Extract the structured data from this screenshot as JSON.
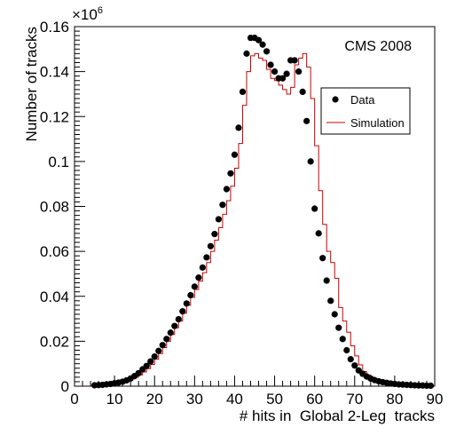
{
  "chart_data": {
    "type": "scatter",
    "annotation": "CMS 2008",
    "xlabel": "# hits in  Global 2-Leg  tracks",
    "ylabel": "Number of tracks",
    "y_multiplier": {
      "base": "×10",
      "exponent": "6"
    },
    "xlim": [
      0,
      90
    ],
    "ylim": [
      0,
      0.16
    ],
    "x_ticks": [
      0,
      10,
      20,
      30,
      40,
      50,
      60,
      70,
      80,
      90
    ],
    "x_tick_labels": [
      "0",
      "10",
      "20",
      "30",
      "40",
      "50",
      "60",
      "70",
      "80",
      "90"
    ],
    "y_ticks": [
      0,
      0.02,
      0.04,
      0.06,
      0.08,
      0.1,
      0.12,
      0.14,
      0.16
    ],
    "y_tick_labels": [
      "0",
      "0.02",
      "0.04",
      "0.06",
      "0.08",
      "0.1",
      "0.12",
      "0.14",
      "0.16"
    ],
    "legend": {
      "position": "top-right",
      "entries": [
        "Data",
        "Simulation"
      ]
    },
    "colors": {
      "data": "#000000",
      "simulation": "#cc0000",
      "axes": "#000000"
    },
    "series": [
      {
        "name": "Data",
        "style": "markers",
        "x": [
          5,
          6,
          7,
          8,
          9,
          10,
          11,
          12,
          13,
          14,
          15,
          16,
          17,
          18,
          19,
          20,
          21,
          22,
          23,
          24,
          25,
          26,
          27,
          28,
          29,
          30,
          31,
          32,
          33,
          34,
          35,
          36,
          37,
          38,
          39,
          40,
          41,
          42,
          43,
          44,
          45,
          46,
          47,
          48,
          49,
          50,
          51,
          52,
          53,
          54,
          55,
          56,
          57,
          58,
          59,
          60,
          61,
          62,
          63,
          64,
          65,
          66,
          67,
          68,
          69,
          70,
          71,
          72,
          73,
          74,
          75,
          76,
          77,
          78,
          79,
          80,
          81,
          82,
          83,
          84,
          85,
          86,
          87,
          88,
          89
        ],
        "y": [
          0.0004,
          0.0005,
          0.0006,
          0.0008,
          0.001,
          0.0013,
          0.0016,
          0.002,
          0.0026,
          0.0034,
          0.0045,
          0.0058,
          0.0075,
          0.009,
          0.011,
          0.0132,
          0.0157,
          0.0183,
          0.021,
          0.0238,
          0.0268,
          0.0298,
          0.0333,
          0.0368,
          0.0405,
          0.0443,
          0.0483,
          0.0528,
          0.0573,
          0.0623,
          0.0677,
          0.0743,
          0.0807,
          0.0877,
          0.0947,
          0.103,
          0.115,
          0.131,
          0.148,
          0.155,
          0.155,
          0.154,
          0.152,
          0.149,
          0.143,
          0.14,
          0.137,
          0.137,
          0.139,
          0.145,
          0.145,
          0.14,
          0.131,
          0.118,
          0.1,
          0.079,
          0.068,
          0.057,
          0.047,
          0.038,
          0.032,
          0.026,
          0.021,
          0.016,
          0.012,
          0.0092,
          0.007,
          0.0055,
          0.0043,
          0.0034,
          0.0027,
          0.0022,
          0.0018,
          0.0015,
          0.0012,
          0.001,
          0.0008,
          0.0007,
          0.0006,
          0.0005,
          0.0004,
          0.0003,
          0.0003,
          0.0002,
          0.0002
        ]
      },
      {
        "name": "Simulation",
        "style": "step",
        "bin_edges": [
          4,
          5,
          6,
          7,
          8,
          9,
          10,
          11,
          12,
          13,
          14,
          15,
          16,
          17,
          18,
          19,
          20,
          21,
          22,
          23,
          24,
          25,
          26,
          27,
          28,
          29,
          30,
          31,
          32,
          33,
          34,
          35,
          36,
          37,
          38,
          39,
          40,
          41,
          42,
          43,
          44,
          45,
          46,
          47,
          48,
          49,
          50,
          51,
          52,
          53,
          54,
          55,
          56,
          57,
          58,
          59,
          60,
          61,
          62,
          63,
          64,
          65,
          66,
          67,
          68,
          69,
          70,
          71,
          72,
          73,
          74,
          75,
          76,
          77,
          78,
          79,
          80,
          81,
          82,
          83,
          84,
          85,
          86,
          87,
          88,
          89,
          90
        ],
        "values": [
          0.0003,
          0.0004,
          0.0005,
          0.0006,
          0.0008,
          0.001,
          0.0012,
          0.0016,
          0.002,
          0.0025,
          0.0032,
          0.004,
          0.005,
          0.0063,
          0.0078,
          0.0097,
          0.012,
          0.0145,
          0.0172,
          0.02,
          0.023,
          0.026,
          0.029,
          0.0325,
          0.036,
          0.0395,
          0.043,
          0.0467,
          0.0505,
          0.055,
          0.06,
          0.065,
          0.0705,
          0.0765,
          0.0825,
          0.089,
          0.097,
          0.108,
          0.125,
          0.14,
          0.147,
          0.148,
          0.146,
          0.145,
          0.141,
          0.137,
          0.136,
          0.134,
          0.132,
          0.13,
          0.133,
          0.143,
          0.146,
          0.148,
          0.142,
          0.128,
          0.107,
          0.087,
          0.072,
          0.06,
          0.055,
          0.048,
          0.035,
          0.029,
          0.024,
          0.018,
          0.0135,
          0.0095,
          0.0065,
          0.005,
          0.004,
          0.0032,
          0.0025,
          0.002,
          0.0016,
          0.0013,
          0.001,
          0.0008,
          0.0006,
          0.0005,
          0.0004,
          0.0003,
          0.0003,
          0.0002,
          0.0002,
          0.0001
        ]
      }
    ]
  }
}
